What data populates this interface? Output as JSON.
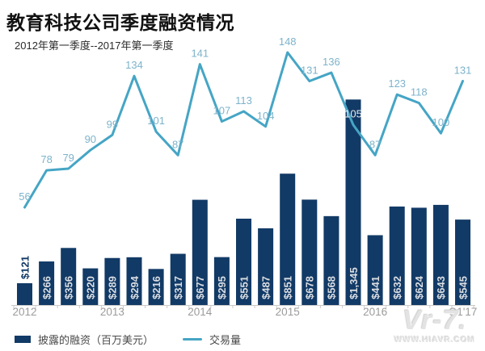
{
  "header": {
    "title": "教育科技公司季度融资情况",
    "subtitle": "2012年第一季度--2017年第一季度"
  },
  "legend": {
    "bars": "披露的融资（百万美元）",
    "line": "交易量"
  },
  "watermark": {
    "logo": "Vr-7.",
    "url": "WWW.HIAVR.COM"
  },
  "colors": {
    "bar": "#123a66",
    "bar_label_inside": "#d9dde2",
    "bar_label_outside": "#123a66",
    "line": "#45a5c5",
    "line_label": "#7db3cb",
    "line_label_on_bar": "#e8ecef",
    "axis": "#c9c9c9",
    "year_label": "#9b9b9b"
  },
  "chart_data": {
    "type": "bar+line",
    "title": "教育科技公司季度融资情况",
    "subtitle": "2012年第一季度--2017年第一季度",
    "categories": [
      "2012Q1",
      "2012Q2",
      "2012Q3",
      "2012Q4",
      "2013Q1",
      "2013Q2",
      "2013Q3",
      "2013Q4",
      "2014Q1",
      "2014Q2",
      "2014Q3",
      "2014Q4",
      "2015Q1",
      "2015Q2",
      "2015Q3",
      "2015Q4",
      "2016Q1",
      "2016Q2",
      "2016Q3",
      "2016Q4",
      "2017Q1"
    ],
    "x_tick_labels": [
      "2012",
      "2013",
      "2014",
      "2015",
      "2016",
      "Q1'17"
    ],
    "x_tick_positions": [
      0,
      4,
      8,
      12,
      16,
      20
    ],
    "series": [
      {
        "name": "披露的融资（百万美元）",
        "type": "bar",
        "values": [
          121,
          266,
          356,
          220,
          289,
          294,
          216,
          317,
          677,
          295,
          551,
          487,
          851,
          678,
          568,
          1345,
          441,
          632,
          624,
          643,
          545
        ],
        "value_labels": [
          "$121",
          "$266",
          "$356",
          "$220",
          "$289",
          "$294",
          "$216",
          "$317",
          "$677",
          "$295",
          "$551",
          "$487",
          "$851",
          "$678",
          "$568",
          "$1,345",
          "$441",
          "$632",
          "$624",
          "$643",
          "$545"
        ]
      },
      {
        "name": "交易量",
        "type": "line",
        "values": [
          56,
          78,
          79,
          90,
          99,
          134,
          101,
          87,
          141,
          107,
          113,
          104,
          148,
          131,
          136,
          105,
          87,
          123,
          118,
          100,
          131
        ]
      }
    ],
    "bar_axis_max": 1345,
    "line_value_on_bar_index": 15,
    "grid": false,
    "legend_position": "bottom"
  }
}
